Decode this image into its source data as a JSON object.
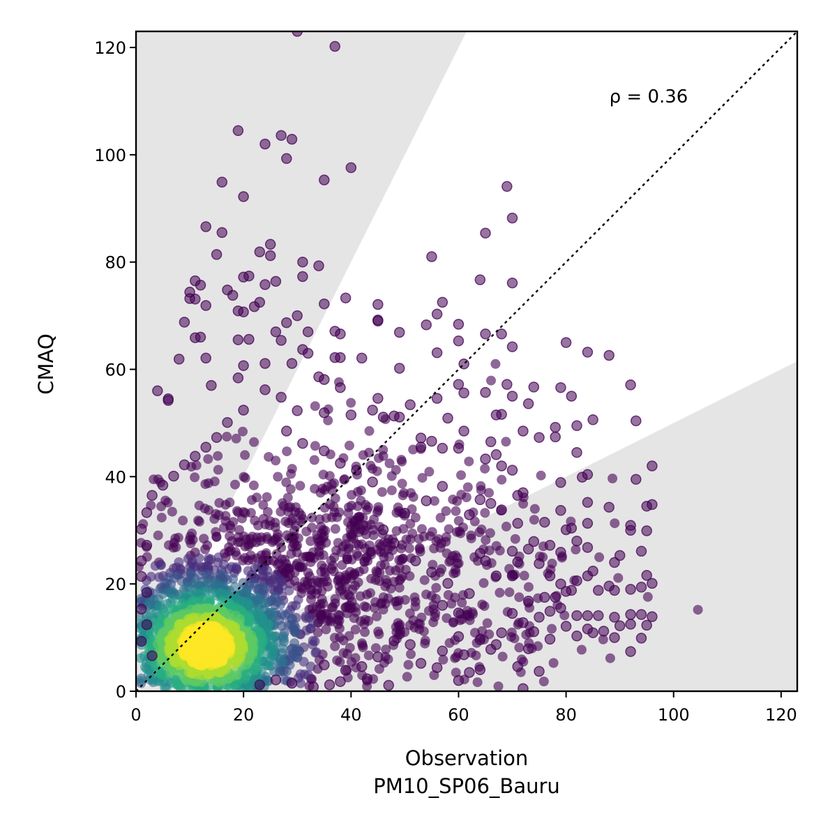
{
  "chart_data": {
    "type": "scatter",
    "title": "",
    "xlabel": "Observation",
    "xlabel_line2": "PM10_SP06_Bauru",
    "ylabel": "CMAQ",
    "xlim": [
      0,
      123
    ],
    "ylim": [
      0,
      123
    ],
    "xticks": [
      "0",
      "20",
      "40",
      "60",
      "80",
      "100",
      "120"
    ],
    "yticks": [
      "0",
      "20",
      "40",
      "60",
      "80",
      "100",
      "120"
    ],
    "annotation": "ρ = 0.36",
    "reference_line": {
      "style": "dotted",
      "from": [
        0,
        0
      ],
      "to": [
        123,
        123
      ],
      "color": "#000000"
    },
    "shaded_regions": [
      {
        "label": "upper",
        "vertices": [
          [
            0,
            0
          ],
          [
            61.5,
            123
          ],
          [
            0,
            123
          ]
        ],
        "color": "#e5e5e5"
      },
      {
        "label": "lower",
        "vertices": [
          [
            0,
            0
          ],
          [
            123,
            0
          ],
          [
            123,
            61.5
          ]
        ],
        "color": "#e5e5e5"
      }
    ],
    "density_colormap": "viridis",
    "grid": false,
    "points": [
      [
        30,
        123
      ],
      [
        37,
        120.2
      ],
      [
        19,
        104.5
      ],
      [
        27,
        103.6
      ],
      [
        29,
        102.9
      ],
      [
        24,
        102
      ],
      [
        28,
        99.3
      ],
      [
        40,
        97.6
      ],
      [
        35,
        95.3
      ],
      [
        16,
        94.9
      ],
      [
        20,
        92.2
      ],
      [
        69,
        94.1
      ],
      [
        70,
        88.2
      ],
      [
        13,
        86.6
      ],
      [
        16,
        85.5
      ],
      [
        65,
        85.4
      ],
      [
        25,
        83.3
      ],
      [
        23,
        81.9
      ],
      [
        15,
        81.4
      ],
      [
        25,
        81.2
      ],
      [
        55,
        81
      ],
      [
        31,
        80
      ],
      [
        34,
        79.3
      ],
      [
        21,
        77.4
      ],
      [
        20,
        77.2
      ],
      [
        31,
        77.3
      ],
      [
        11,
        76.5
      ],
      [
        26,
        76.4
      ],
      [
        64,
        76.7
      ],
      [
        70,
        76.1
      ],
      [
        12,
        75.7
      ],
      [
        24,
        75.8
      ],
      [
        17,
        74.8
      ],
      [
        10,
        74.4
      ],
      [
        18,
        73.8
      ],
      [
        10,
        73.2
      ],
      [
        11,
        73.1
      ],
      [
        39,
        73.3
      ],
      [
        13,
        71.9
      ],
      [
        22,
        71.7
      ],
      [
        35,
        72.2
      ],
      [
        45,
        72.1
      ],
      [
        57,
        72.5
      ],
      [
        19,
        70.9
      ],
      [
        20,
        70.7
      ],
      [
        23,
        72.5
      ],
      [
        56,
        70.3
      ],
      [
        9,
        68.8
      ],
      [
        28,
        68.7
      ],
      [
        30,
        70
      ],
      [
        45,
        69.2
      ],
      [
        45,
        69
      ],
      [
        60,
        68.4
      ],
      [
        54,
        68.3
      ],
      [
        37,
        67.1
      ],
      [
        26,
        67
      ],
      [
        32,
        67
      ],
      [
        38,
        66.6
      ],
      [
        65,
        66.6
      ],
      [
        68,
        66.6
      ],
      [
        11,
        65.9
      ],
      [
        12,
        66
      ],
      [
        19,
        65.5
      ],
      [
        21,
        65.6
      ],
      [
        27,
        65.4
      ],
      [
        49,
        66.9
      ],
      [
        60,
        65.3
      ],
      [
        70,
        64.2
      ],
      [
        31,
        63.7
      ],
      [
        32,
        63
      ],
      [
        56,
        63.1
      ],
      [
        13,
        62.1
      ],
      [
        37,
        62.2
      ],
      [
        38,
        62.2
      ],
      [
        42,
        62.1
      ],
      [
        80,
        65
      ],
      [
        84,
        63.2
      ],
      [
        88,
        62.6
      ],
      [
        8,
        61.9
      ],
      [
        24,
        61.1
      ],
      [
        29,
        61.1
      ],
      [
        49,
        60.2
      ],
      [
        61,
        61
      ],
      [
        20,
        60.7
      ],
      [
        19,
        58.4
      ],
      [
        34,
        58.6
      ],
      [
        35,
        58.1
      ],
      [
        38,
        56.6
      ],
      [
        4,
        56
      ],
      [
        14,
        57
      ],
      [
        60,
        57.2
      ],
      [
        69,
        57.2
      ],
      [
        65,
        55.7
      ],
      [
        61,
        55.6
      ],
      [
        79,
        56.6
      ],
      [
        74,
        56.7
      ],
      [
        81,
        55
      ],
      [
        70,
        55
      ],
      [
        51,
        53.4
      ],
      [
        6,
        54.5
      ],
      [
        6,
        54.2
      ],
      [
        56,
        54.6
      ],
      [
        45,
        54.6
      ],
      [
        73,
        53.6
      ],
      [
        44,
        52.4
      ],
      [
        35,
        51.9
      ],
      [
        40,
        51.5
      ],
      [
        46,
        51.1
      ],
      [
        48,
        51.3
      ],
      [
        49,
        51.1
      ],
      [
        58,
        50.9
      ],
      [
        67,
        51.5
      ],
      [
        68,
        51.6
      ],
      [
        78,
        49.2
      ],
      [
        82,
        49.5
      ],
      [
        85,
        50.6
      ],
      [
        93,
        50.4
      ],
      [
        92,
        57.1
      ],
      [
        72,
        48.5
      ],
      [
        78,
        47.4
      ],
      [
        75,
        47.3
      ],
      [
        61,
        48.5
      ],
      [
        53,
        47.2
      ],
      [
        55,
        46.6
      ],
      [
        53,
        45.5
      ],
      [
        57,
        45.3
      ],
      [
        60,
        45.3
      ],
      [
        66,
        46.5
      ],
      [
        67,
        44.1
      ],
      [
        65,
        43.3
      ],
      [
        82,
        44.5
      ],
      [
        68,
        42
      ],
      [
        70,
        41.2
      ],
      [
        84,
        40.4
      ],
      [
        83,
        39.9
      ],
      [
        79,
        38.9
      ],
      [
        72,
        37
      ],
      [
        71,
        36.5
      ],
      [
        93,
        39.5
      ],
      [
        96,
        42
      ],
      [
        95,
        34.5
      ],
      [
        96,
        34.8
      ],
      [
        88,
        34.3
      ],
      [
        84,
        35.2
      ],
      [
        79,
        33.7
      ],
      [
        66,
        35
      ],
      [
        64,
        35.7
      ],
      [
        68,
        33.8
      ],
      [
        62,
        32.9
      ],
      [
        71,
        31.3
      ],
      [
        76,
        31.5
      ],
      [
        81,
        30.4
      ],
      [
        80,
        30.1
      ],
      [
        84,
        31.3
      ],
      [
        92,
        30.9
      ],
      [
        92,
        30
      ],
      [
        95,
        29.9
      ],
      [
        74,
        27.9
      ],
      [
        73,
        26.5
      ],
      [
        77,
        27.2
      ],
      [
        70,
        26.1
      ],
      [
        64,
        25.7
      ],
      [
        65,
        24.3
      ],
      [
        71,
        24.1
      ],
      [
        75,
        23.8
      ],
      [
        79,
        25.9
      ],
      [
        82,
        28
      ],
      [
        84,
        26.8
      ],
      [
        90,
        25.3
      ],
      [
        89,
        24
      ],
      [
        94,
        26.1
      ],
      [
        85,
        22.4
      ],
      [
        84,
        21.5
      ],
      [
        82,
        20.6
      ],
      [
        81,
        18.8
      ],
      [
        79,
        20
      ],
      [
        86,
        18.8
      ],
      [
        88,
        19.6
      ],
      [
        89,
        18.8
      ],
      [
        92,
        19
      ],
      [
        96,
        20.1
      ],
      [
        95,
        21.6
      ],
      [
        94,
        19.4
      ],
      [
        77,
        21.5
      ],
      [
        70,
        21.5
      ],
      [
        67,
        21.5
      ],
      [
        80,
        18.6
      ],
      [
        78,
        17.5
      ],
      [
        76,
        17.5
      ],
      [
        73,
        16.8
      ],
      [
        79,
        15.5
      ],
      [
        77,
        14.9
      ],
      [
        82,
        14.1
      ],
      [
        84,
        14.1
      ],
      [
        86,
        14.1
      ],
      [
        89,
        13.8
      ],
      [
        92,
        14.3
      ],
      [
        94,
        14.3
      ],
      [
        96,
        13.9
      ],
      [
        75,
        13.8
      ],
      [
        72,
        12.8
      ],
      [
        70,
        14.5
      ],
      [
        74,
        11.1
      ],
      [
        80,
        12.1
      ],
      [
        84,
        11.6
      ],
      [
        87,
        11.2
      ],
      [
        90,
        12.2
      ],
      [
        92,
        12.5
      ],
      [
        77,
        9.7
      ],
      [
        82,
        10.3
      ],
      [
        85,
        10.9
      ],
      [
        89,
        10
      ],
      [
        94,
        9.9
      ],
      [
        95,
        12.3
      ],
      [
        92,
        7.4
      ],
      [
        73,
        7.9
      ],
      [
        71,
        4.6
      ],
      [
        75,
        3.7
      ],
      [
        72,
        0.5
      ],
      [
        66,
        7.8
      ],
      [
        64,
        4
      ],
      [
        62,
        3.5
      ],
      [
        60,
        2
      ],
      [
        56,
        4.4
      ],
      [
        53,
        5.2
      ],
      [
        47,
        1.1
      ],
      [
        43,
        2.3
      ],
      [
        38,
        1.8
      ],
      [
        36,
        1.2
      ],
      [
        33,
        0.8
      ],
      [
        29,
        1.5
      ],
      [
        26,
        2.1
      ],
      [
        23,
        1.2
      ],
      [
        68,
        10.9
      ],
      [
        67,
        8.7
      ],
      [
        64,
        9.6
      ],
      [
        60,
        10.2
      ],
      [
        61,
        6.8
      ],
      [
        57,
        7.5
      ],
      [
        51,
        8.7
      ],
      [
        48,
        9.4
      ],
      [
        45,
        6.4
      ],
      [
        42,
        4.6
      ],
      [
        39,
        3.9
      ],
      [
        35,
        4.9
      ],
      [
        57,
        16
      ],
      [
        60,
        14.6
      ],
      [
        62,
        18.2
      ],
      [
        58,
        20.1
      ],
      [
        55,
        22.2
      ],
      [
        52,
        24.3
      ],
      [
        48,
        27.6
      ],
      [
        46,
        30.1
      ],
      [
        50,
        33.2
      ],
      [
        54,
        35.5
      ],
      [
        57,
        38.2
      ],
      [
        44,
        39
      ],
      [
        41,
        41.2
      ],
      [
        38,
        42.5
      ],
      [
        35,
        44.8
      ],
      [
        31,
        46.2
      ],
      [
        28,
        48.5
      ],
      [
        30,
        52.3
      ],
      [
        27,
        54.8
      ],
      [
        24,
        56.2
      ],
      [
        20,
        52.4
      ],
      [
        17,
        50.1
      ],
      [
        15,
        47.3
      ],
      [
        13,
        45.5
      ],
      [
        11,
        43.8
      ],
      [
        9,
        42.2
      ],
      [
        7,
        40.1
      ],
      [
        5,
        38.4
      ],
      [
        3,
        36.5
      ],
      [
        2,
        33.3
      ],
      [
        1,
        30.2
      ],
      [
        2,
        27.2
      ],
      [
        1,
        24.3
      ],
      [
        1,
        21.4
      ],
      [
        2,
        18.4
      ],
      [
        1,
        15.3
      ],
      [
        2,
        12.4
      ],
      [
        1,
        9.3
      ],
      [
        3,
        6.6
      ]
    ]
  }
}
